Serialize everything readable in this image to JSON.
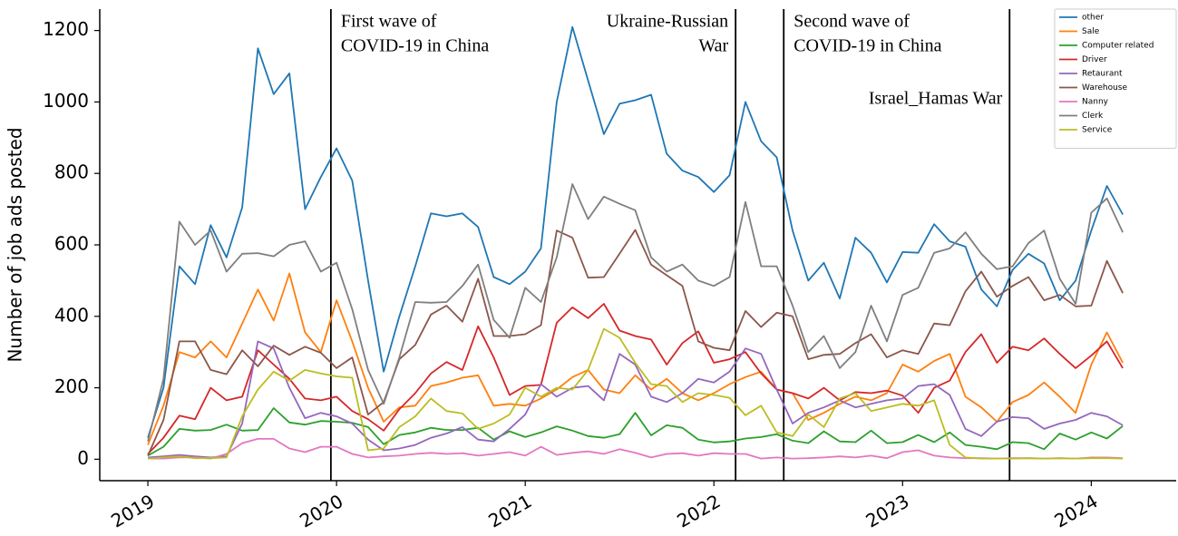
{
  "chart_data": {
    "type": "line",
    "ylabel": "Number of job ads posted",
    "xlim": [
      2018.745,
      2024.45
    ],
    "ylim": [
      -60,
      1260
    ],
    "xticks": [
      2019,
      2020,
      2021,
      2022,
      2023,
      2024
    ],
    "yticks": [
      0,
      200,
      400,
      600,
      800,
      1000,
      1200
    ],
    "legend": "upper right",
    "annotations": [
      {
        "x": 2019.97,
        "text": [
          "First wave of",
          "COVID-19 in China"
        ],
        "align": "start"
      },
      {
        "x": 2022.115,
        "text": [
          "Ukraine-Russian",
          "War"
        ],
        "align": "end"
      },
      {
        "x": 2022.37,
        "text": [
          "Second wave of",
          "COVID-19 in China"
        ],
        "align": "start"
      },
      {
        "x": 2023.567,
        "text": [
          "Israel_Hamas War"
        ],
        "align": "end"
      }
    ],
    "x": [
      2019,
      2019.083,
      2019.167,
      2019.25,
      2019.333,
      2019.417,
      2019.5,
      2019.583,
      2019.667,
      2019.75,
      2019.833,
      2019.917,
      2020,
      2020.083,
      2020.167,
      2020.25,
      2020.333,
      2020.417,
      2020.5,
      2020.583,
      2020.667,
      2020.75,
      2020.833,
      2020.917,
      2021,
      2021.083,
      2021.167,
      2021.25,
      2021.333,
      2021.417,
      2021.5,
      2021.583,
      2021.667,
      2021.75,
      2021.833,
      2021.917,
      2022,
      2022.083,
      2022.167,
      2022.25,
      2022.333,
      2022.417,
      2022.5,
      2022.583,
      2022.667,
      2022.75,
      2022.833,
      2022.917,
      2023,
      2023.083,
      2023.167,
      2023.25,
      2023.333,
      2023.417,
      2023.5,
      2023.583,
      2023.667,
      2023.75,
      2023.833,
      2023.917,
      2024,
      2024.083,
      2024.167
    ],
    "series": [
      {
        "name": "other",
        "color": "#1f77b4",
        "values": [
          60,
          200,
          540,
          490,
          655,
          565,
          705,
          1150,
          1022,
          1080,
          700,
          790,
          870,
          780,
          500,
          245,
          400,
          540,
          688,
          680,
          688,
          650,
          510,
          490,
          525,
          590,
          1000,
          1210,
          1060,
          910,
          995,
          1005,
          1020,
          855,
          808,
          790,
          748,
          795,
          1000,
          890,
          845,
          640,
          500,
          550,
          450,
          620,
          578,
          495,
          580,
          578,
          658,
          610,
          595,
          475,
          428,
          530,
          575,
          548,
          445,
          500,
          640,
          765,
          685
        ]
      },
      {
        "name": "Sale",
        "color": "#ff7f0e",
        "values": [
          40,
          150,
          300,
          285,
          330,
          285,
          380,
          475,
          388,
          520,
          355,
          300,
          445,
          330,
          200,
          105,
          145,
          150,
          205,
          215,
          228,
          235,
          150,
          155,
          150,
          170,
          195,
          230,
          250,
          195,
          185,
          235,
          195,
          225,
          185,
          165,
          185,
          210,
          230,
          245,
          195,
          185,
          110,
          130,
          155,
          175,
          165,
          185,
          265,
          245,
          275,
          295,
          175,
          145,
          105,
          160,
          180,
          215,
          175,
          130,
          265,
          355,
          270
        ]
      },
      {
        "name": "Computer related",
        "color": "#2ca02c",
        "values": [
          10,
          35,
          85,
          80,
          82,
          97,
          80,
          82,
          143,
          103,
          97,
          107,
          105,
          102,
          90,
          42,
          68,
          75,
          88,
          82,
          82,
          88,
          55,
          78,
          62,
          75,
          92,
          80,
          65,
          60,
          70,
          130,
          67,
          95,
          88,
          55,
          47,
          50,
          58,
          62,
          70,
          52,
          45,
          78,
          50,
          48,
          80,
          45,
          48,
          68,
          48,
          75,
          40,
          35,
          28,
          48,
          45,
          28,
          72,
          55,
          75,
          58,
          93
        ]
      },
      {
        "name": "Driver",
        "color": "#d62728",
        "values": [
          15,
          60,
          122,
          112,
          200,
          165,
          175,
          305,
          265,
          225,
          170,
          165,
          175,
          135,
          112,
          80,
          140,
          185,
          240,
          272,
          250,
          372,
          285,
          180,
          205,
          208,
          382,
          425,
          395,
          435,
          360,
          345,
          335,
          265,
          325,
          358,
          270,
          280,
          300,
          240,
          195,
          185,
          170,
          200,
          165,
          188,
          185,
          192,
          178,
          130,
          200,
          220,
          300,
          350,
          270,
          315,
          305,
          338,
          295,
          255,
          290,
          330,
          255
        ]
      },
      {
        "name": "Retaurant",
        "color": "#9467bd",
        "values": [
          5,
          8,
          12,
          8,
          5,
          8,
          100,
          330,
          310,
          200,
          115,
          130,
          120,
          100,
          55,
          25,
          30,
          40,
          60,
          72,
          90,
          55,
          50,
          85,
          125,
          210,
          175,
          200,
          205,
          165,
          295,
          265,
          175,
          160,
          185,
          225,
          215,
          245,
          310,
          295,
          195,
          100,
          130,
          145,
          165,
          145,
          155,
          165,
          170,
          205,
          210,
          180,
          85,
          65,
          105,
          118,
          115,
          85,
          100,
          110,
          130,
          120,
          95
        ]
      },
      {
        "name": "Warehouse",
        "color": "#8c564b",
        "values": [
          10,
          110,
          330,
          330,
          250,
          238,
          305,
          260,
          318,
          292,
          315,
          298,
          255,
          285,
          125,
          160,
          280,
          320,
          405,
          430,
          385,
          505,
          345,
          345,
          350,
          375,
          640,
          620,
          508,
          510,
          575,
          642,
          545,
          515,
          485,
          330,
          312,
          305,
          415,
          370,
          410,
          400,
          280,
          292,
          295,
          325,
          350,
          285,
          305,
          295,
          380,
          375,
          470,
          525,
          455,
          485,
          510,
          445,
          460,
          428,
          430,
          555,
          465
        ]
      },
      {
        "name": "Nanny",
        "color": "#e377c2",
        "values": [
          2,
          2,
          5,
          5,
          2,
          15,
          45,
          57,
          57,
          30,
          20,
          35,
          35,
          15,
          5,
          8,
          10,
          15,
          18,
          15,
          17,
          10,
          15,
          20,
          10,
          35,
          12,
          18,
          22,
          15,
          28,
          18,
          5,
          15,
          17,
          10,
          17,
          15,
          15,
          2,
          5,
          2,
          3,
          5,
          8,
          5,
          10,
          3,
          20,
          25,
          10,
          5,
          3,
          3,
          2,
          3,
          3,
          2,
          3,
          2,
          5,
          5,
          3
        ]
      },
      {
        "name": "Clerk",
        "color": "#7f7f7f",
        "values": [
          50,
          225,
          665,
          600,
          640,
          525,
          575,
          577,
          568,
          600,
          610,
          525,
          550,
          420,
          250,
          155,
          285,
          440,
          438,
          440,
          485,
          545,
          390,
          340,
          480,
          440,
          565,
          770,
          672,
          735,
          715,
          697,
          565,
          525,
          545,
          500,
          485,
          510,
          720,
          540,
          540,
          430,
          300,
          345,
          255,
          300,
          430,
          330,
          460,
          480,
          578,
          590,
          635,
          575,
          532,
          540,
          605,
          640,
          505,
          435,
          690,
          730,
          635
        ]
      },
      {
        "name": "Service",
        "color": "#bcbd22",
        "values": [
          2,
          5,
          8,
          3,
          3,
          5,
          120,
          195,
          245,
          220,
          250,
          240,
          232,
          228,
          25,
          30,
          90,
          120,
          170,
          135,
          128,
          85,
          100,
          125,
          200,
          175,
          200,
          195,
          250,
          365,
          340,
          270,
          210,
          205,
          160,
          185,
          180,
          172,
          123,
          150,
          75,
          65,
          125,
          90,
          170,
          185,
          135,
          145,
          155,
          150,
          165,
          40,
          5,
          2,
          2,
          2,
          3,
          2,
          3,
          2,
          3,
          3,
          2
        ]
      }
    ]
  }
}
